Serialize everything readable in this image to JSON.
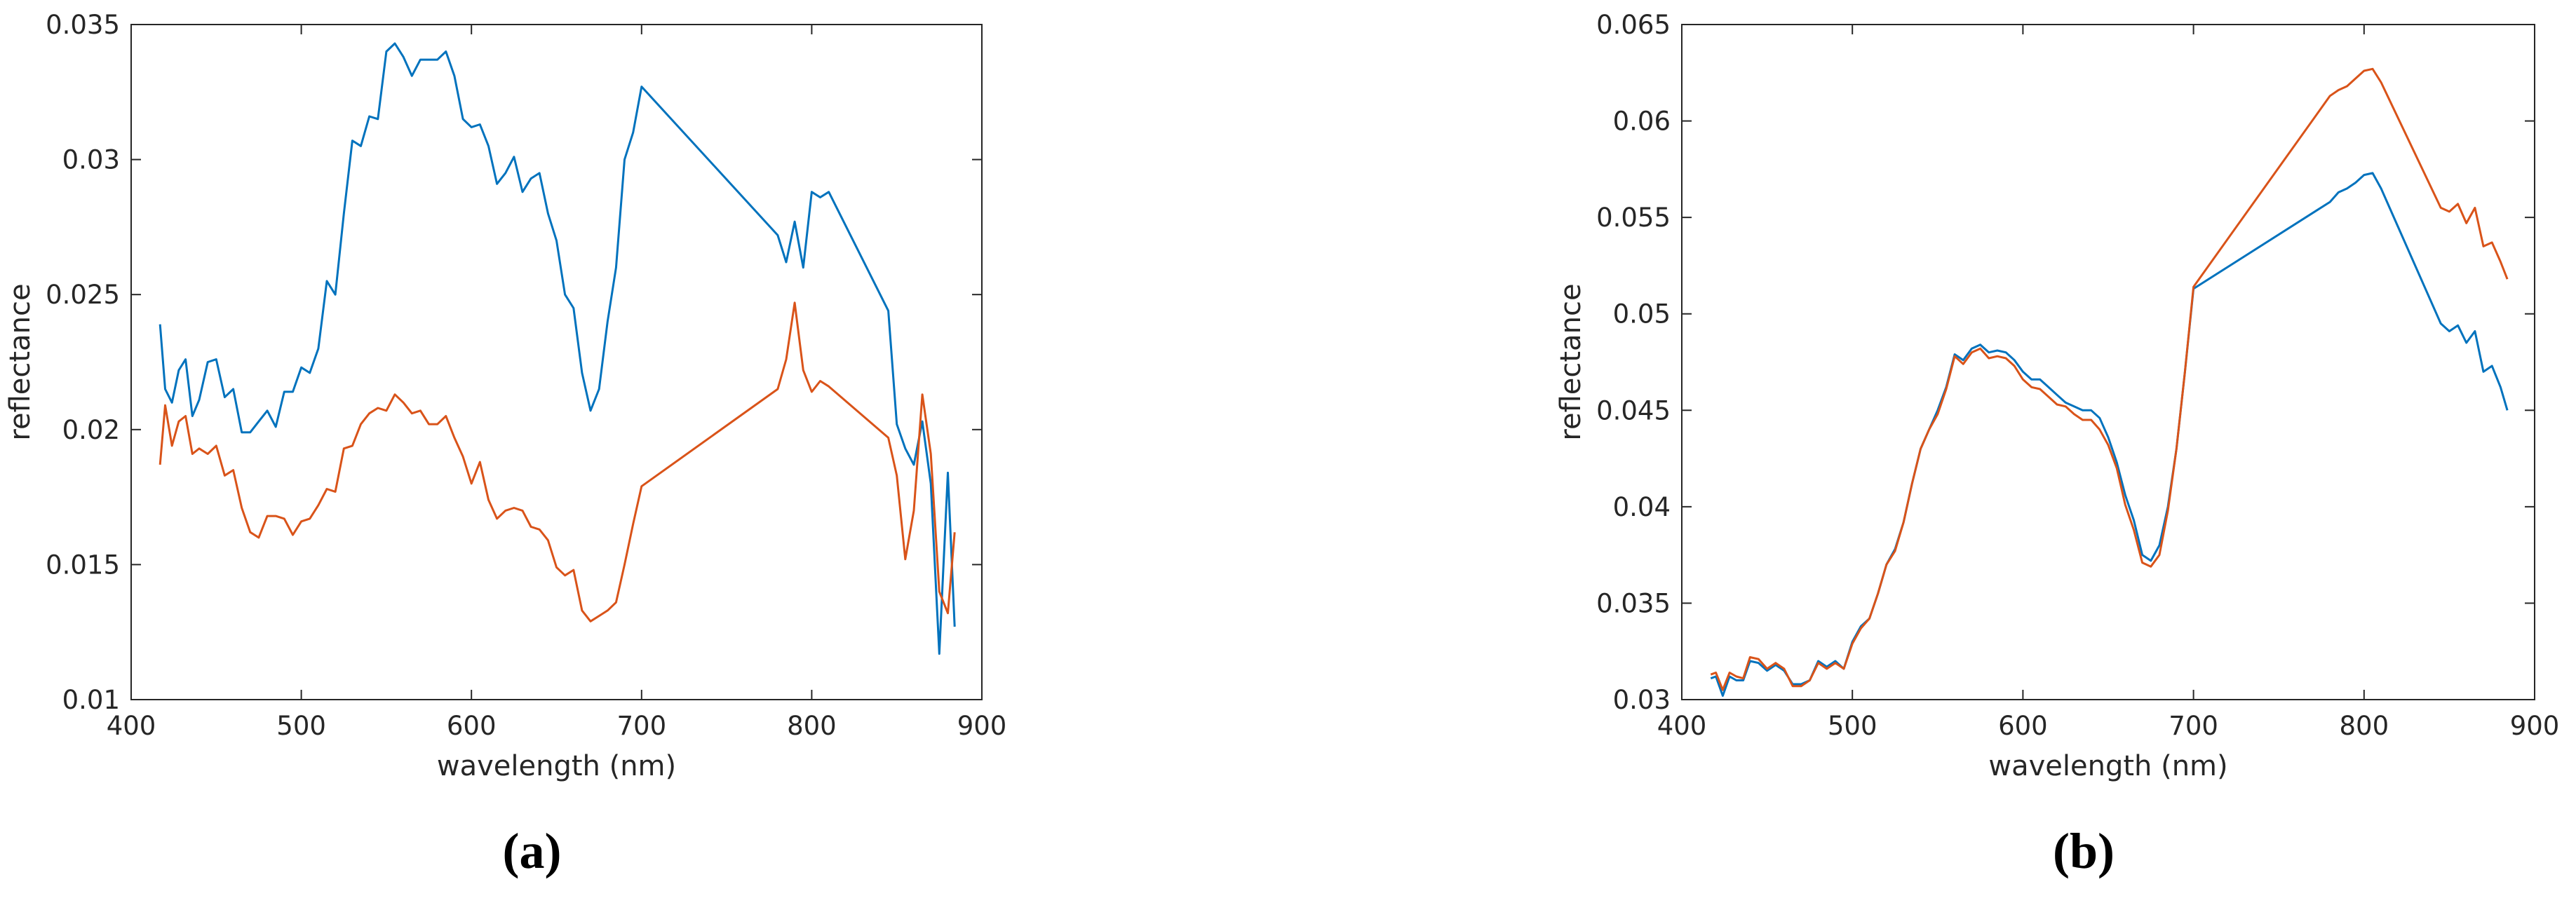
{
  "chart_data": [
    {
      "type": "line",
      "caption": "(a)",
      "x_label": "wavelength (nm)",
      "y_label": "reflectance",
      "x": [
        417,
        420,
        424,
        428,
        432,
        436,
        440,
        445,
        450,
        455,
        460,
        465,
        470,
        475,
        480,
        485,
        490,
        495,
        500,
        505,
        510,
        515,
        520,
        525,
        530,
        535,
        540,
        545,
        550,
        555,
        560,
        565,
        570,
        575,
        580,
        585,
        590,
        595,
        600,
        605,
        610,
        615,
        620,
        625,
        630,
        635,
        640,
        645,
        650,
        655,
        660,
        665,
        670,
        675,
        680,
        685,
        690,
        695,
        700,
        780,
        785,
        790,
        795,
        800,
        805,
        810,
        845,
        850,
        855,
        860,
        865,
        870,
        875,
        880,
        884
      ],
      "series": [
        {
          "color": "#0072bd",
          "values": [
            0.0239,
            0.0215,
            0.021,
            0.0222,
            0.0226,
            0.0205,
            0.0211,
            0.0225,
            0.0226,
            0.0212,
            0.0215,
            0.0199,
            0.0199,
            0.0203,
            0.0207,
            0.0201,
            0.0214,
            0.0214,
            0.0223,
            0.0221,
            0.023,
            0.0255,
            0.025,
            0.028,
            0.0307,
            0.0305,
            0.0316,
            0.0315,
            0.034,
            0.0343,
            0.0338,
            0.0331,
            0.0337,
            0.0337,
            0.0337,
            0.034,
            0.0331,
            0.0315,
            0.0312,
            0.0313,
            0.0305,
            0.0291,
            0.0295,
            0.0301,
            0.0288,
            0.0293,
            0.0295,
            0.028,
            0.027,
            0.025,
            0.0245,
            0.0221,
            0.0207,
            0.0215,
            0.024,
            0.026,
            0.03,
            0.031,
            0.0327,
            0.0272,
            0.0262,
            0.0277,
            0.026,
            0.0288,
            0.0286,
            0.0288,
            0.0244,
            0.0202,
            0.0193,
            0.0187,
            0.0203,
            0.018,
            0.0117,
            0.0184,
            0.0127
          ]
        },
        {
          "color": "#d95319",
          "values": [
            0.0187,
            0.0209,
            0.0194,
            0.0203,
            0.0205,
            0.0191,
            0.0193,
            0.0191,
            0.0194,
            0.0183,
            0.0185,
            0.0171,
            0.0162,
            0.016,
            0.0168,
            0.0168,
            0.0167,
            0.0161,
            0.0166,
            0.0167,
            0.0172,
            0.0178,
            0.0177,
            0.0193,
            0.0194,
            0.0202,
            0.0206,
            0.0208,
            0.0207,
            0.0213,
            0.021,
            0.0206,
            0.0207,
            0.0202,
            0.0202,
            0.0205,
            0.0197,
            0.019,
            0.018,
            0.0188,
            0.0174,
            0.0167,
            0.017,
            0.0171,
            0.017,
            0.0164,
            0.0163,
            0.0159,
            0.0149,
            0.0146,
            0.0148,
            0.0133,
            0.0129,
            0.0131,
            0.0133,
            0.0136,
            0.015,
            0.0165,
            0.0179,
            0.0215,
            0.0226,
            0.0247,
            0.0222,
            0.0214,
            0.0218,
            0.0216,
            0.0197,
            0.0183,
            0.0152,
            0.017,
            0.0213,
            0.0191,
            0.014,
            0.0132,
            0.0162
          ]
        }
      ],
      "xlim": [
        400,
        900
      ],
      "xticks": [
        400,
        500,
        600,
        700,
        800,
        900
      ],
      "ylim": [
        0.01,
        0.035
      ],
      "yticks": [
        0.01,
        0.015,
        0.02,
        0.025,
        0.03,
        0.035
      ]
    },
    {
      "type": "line",
      "caption": "(b)",
      "x_label": "wavelength (nm)",
      "y_label": "reflectance",
      "x": [
        417,
        420,
        424,
        428,
        432,
        436,
        440,
        445,
        450,
        455,
        460,
        465,
        470,
        475,
        480,
        485,
        490,
        495,
        500,
        505,
        510,
        515,
        520,
        525,
        530,
        535,
        540,
        545,
        550,
        555,
        560,
        565,
        570,
        575,
        580,
        585,
        590,
        595,
        600,
        605,
        610,
        615,
        620,
        625,
        630,
        635,
        640,
        645,
        650,
        655,
        660,
        665,
        670,
        675,
        680,
        685,
        690,
        695,
        700,
        780,
        785,
        790,
        795,
        800,
        805,
        810,
        845,
        850,
        855,
        860,
        865,
        870,
        875,
        880,
        884
      ],
      "series": [
        {
          "color": "#0072bd",
          "values": [
            0.0311,
            0.0312,
            0.0302,
            0.0312,
            0.031,
            0.031,
            0.032,
            0.0319,
            0.0315,
            0.0318,
            0.0315,
            0.0308,
            0.0308,
            0.031,
            0.032,
            0.0317,
            0.032,
            0.0316,
            0.033,
            0.0338,
            0.0342,
            0.0355,
            0.037,
            0.0378,
            0.0392,
            0.0412,
            0.043,
            0.044,
            0.045,
            0.0462,
            0.0479,
            0.0476,
            0.0482,
            0.0484,
            0.048,
            0.0481,
            0.048,
            0.0476,
            0.047,
            0.0466,
            0.0466,
            0.0462,
            0.0458,
            0.0454,
            0.0452,
            0.045,
            0.045,
            0.0446,
            0.0436,
            0.0423,
            0.0406,
            0.0393,
            0.0375,
            0.0372,
            0.038,
            0.04,
            0.043,
            0.047,
            0.0513,
            0.0558,
            0.0563,
            0.0565,
            0.0568,
            0.0572,
            0.0573,
            0.0565,
            0.0495,
            0.0491,
            0.0494,
            0.0485,
            0.0491,
            0.047,
            0.0473,
            0.0462,
            0.045
          ]
        },
        {
          "color": "#d95319",
          "values": [
            0.0313,
            0.0314,
            0.0305,
            0.0314,
            0.0312,
            0.0311,
            0.0322,
            0.0321,
            0.0316,
            0.0319,
            0.0316,
            0.0307,
            0.0307,
            0.031,
            0.0319,
            0.0316,
            0.0319,
            0.0316,
            0.0329,
            0.0337,
            0.0342,
            0.0355,
            0.037,
            0.0377,
            0.0392,
            0.0412,
            0.043,
            0.044,
            0.0448,
            0.0461,
            0.0478,
            0.0474,
            0.048,
            0.0482,
            0.0477,
            0.0478,
            0.0477,
            0.0473,
            0.0466,
            0.0462,
            0.0461,
            0.0457,
            0.0453,
            0.0452,
            0.0448,
            0.0445,
            0.0445,
            0.044,
            0.0432,
            0.042,
            0.0401,
            0.0388,
            0.0371,
            0.0369,
            0.0375,
            0.0398,
            0.043,
            0.047,
            0.0514,
            0.0613,
            0.0616,
            0.0618,
            0.0622,
            0.0626,
            0.0627,
            0.062,
            0.0555,
            0.0553,
            0.0557,
            0.0547,
            0.0555,
            0.0535,
            0.0537,
            0.0527,
            0.0518
          ]
        }
      ],
      "xlim": [
        400,
        900
      ],
      "xticks": [
        400,
        500,
        600,
        700,
        800,
        900
      ],
      "ylim": [
        0.03,
        0.065
      ],
      "yticks": [
        0.03,
        0.035,
        0.04,
        0.045,
        0.05,
        0.055,
        0.06,
        0.065
      ]
    }
  ]
}
